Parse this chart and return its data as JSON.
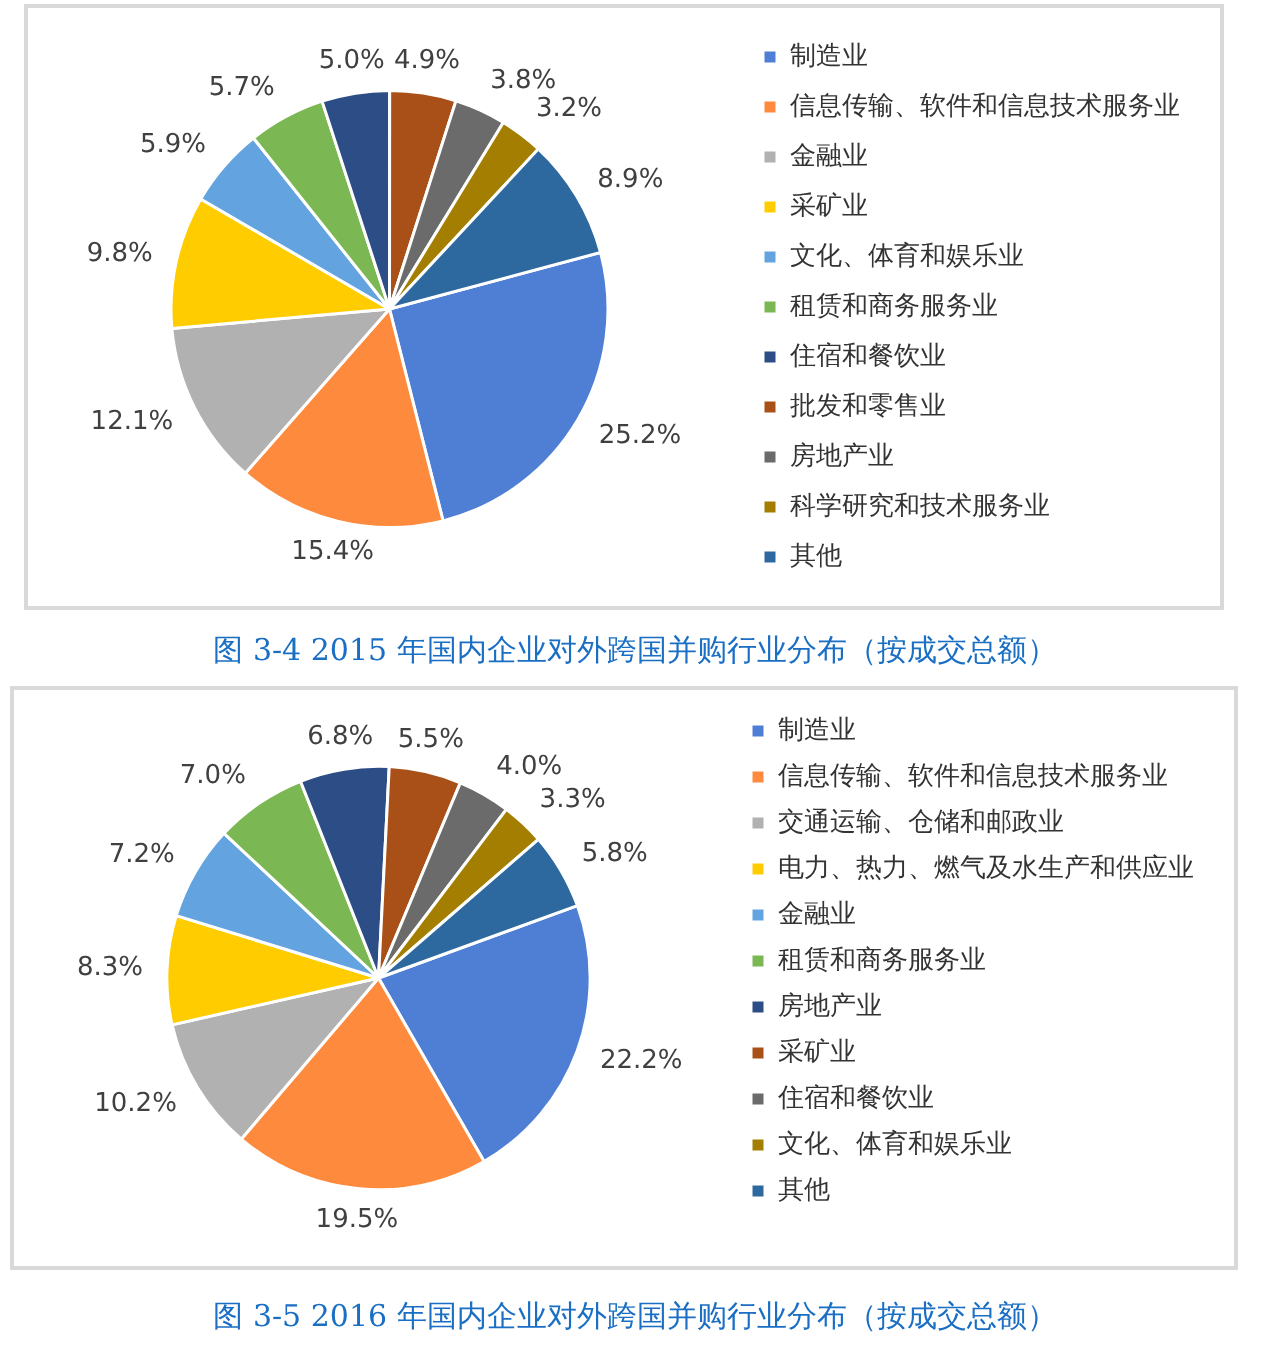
{
  "chart_data": [
    {
      "type": "pie",
      "title": "图 3-4 2015 年国内企业对外跨国并购行业分布（按成交总额）",
      "categories": [
        "制造业",
        "信息传输、软件和信息技术服务业",
        "金融业",
        "采矿业",
        "文化、体育和娱乐业",
        "租赁和商务服务业",
        "住宿和餐饮业",
        "批发和零售业",
        "房地产业",
        "科学研究和技术服务业",
        "其他"
      ],
      "values": [
        25.2,
        15.4,
        12.1,
        9.8,
        5.9,
        5.7,
        5.0,
        4.9,
        3.8,
        3.2,
        8.9
      ],
      "colors": [
        "#4e7fd4",
        "#fd8a3d",
        "#b1b1b1",
        "#ffcc00",
        "#62a3e0",
        "#7bb752",
        "#2c4d85",
        "#a85017",
        "#6b6b6b",
        "#a37e00",
        "#2d699e"
      ],
      "value_labels": [
        "25.2%",
        "15.4%",
        "12.1%",
        "9.8%",
        "5.9%",
        "5.7%",
        "5.0%",
        "4.9%",
        "3.8%",
        "3.2%",
        "8.9%"
      ],
      "legend": "right"
    },
    {
      "type": "pie",
      "title": "图 3-5 2016 年国内企业对外跨国并购行业分布（按成交总额）",
      "categories": [
        "制造业",
        "信息传输、软件和信息技术服务业",
        "交通运输、仓储和邮政业",
        "电力、热力、燃气及水生产和供应业",
        "金融业",
        "租赁和商务服务业",
        "房地产业",
        "采矿业",
        "住宿和餐饮业",
        "文化、体育和娱乐业",
        "其他"
      ],
      "values": [
        22.2,
        19.5,
        10.2,
        8.3,
        7.2,
        7.0,
        6.8,
        5.5,
        4.0,
        3.3,
        5.8
      ],
      "colors": [
        "#4e7fd4",
        "#fd8a3d",
        "#b1b1b1",
        "#ffcc00",
        "#62a3e0",
        "#7bb752",
        "#2c4d85",
        "#a85017",
        "#6b6b6b",
        "#a37e00",
        "#2d699e"
      ],
      "value_labels": [
        "22.2%",
        "19.5%",
        "10.2%",
        "8.3%",
        "7.2%",
        "7.0%",
        "6.8%",
        "5.5%",
        "4.0%",
        "3.3%",
        "5.8%"
      ],
      "legend": "right"
    }
  ]
}
